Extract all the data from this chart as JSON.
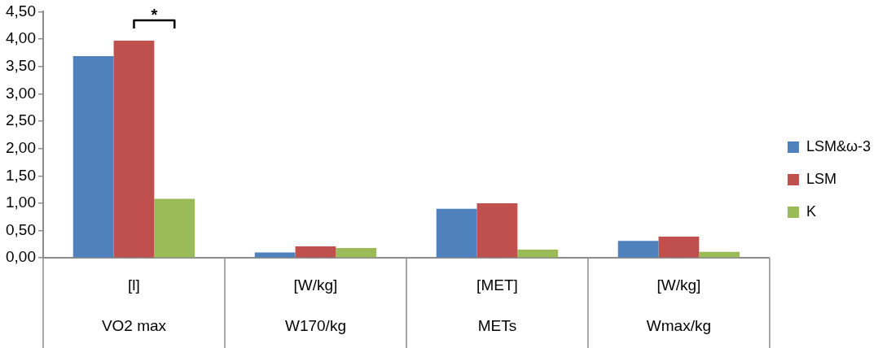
{
  "chart_data": {
    "type": "bar",
    "categories": [
      "[l]\nVO2 max",
      "[W/kg]\nW170/kg",
      "[MET]\nMETs",
      "[W/kg]\nWmax/kg"
    ],
    "series": [
      {
        "name": "LSM&ω-3",
        "color": "#4f81bd",
        "values": [
          3.69,
          0.1,
          0.9,
          0.31
        ]
      },
      {
        "name": "LSM",
        "color": "#c0504d",
        "values": [
          3.97,
          0.21,
          1.0,
          0.39
        ]
      },
      {
        "name": "K",
        "color": "#9bbb59",
        "values": [
          1.08,
          0.18,
          0.15,
          0.11
        ]
      }
    ],
    "ylim": [
      0,
      4.5
    ],
    "yticks": [
      {
        "value": 0,
        "label": "0,00"
      },
      {
        "value": 0.5,
        "label": "0,50"
      },
      {
        "value": 1,
        "label": "1,00"
      },
      {
        "value": 1.5,
        "label": "1,50"
      },
      {
        "value": 2,
        "label": "2,00"
      },
      {
        "value": 2.5,
        "label": "2,50"
      },
      {
        "value": 3,
        "label": "3,00"
      },
      {
        "value": 3.5,
        "label": "3,50"
      },
      {
        "value": 4,
        "label": "4,00"
      },
      {
        "value": 4.5,
        "label": "4,50"
      }
    ],
    "annotations": [
      "*"
    ],
    "grid": false,
    "legend": "right"
  }
}
